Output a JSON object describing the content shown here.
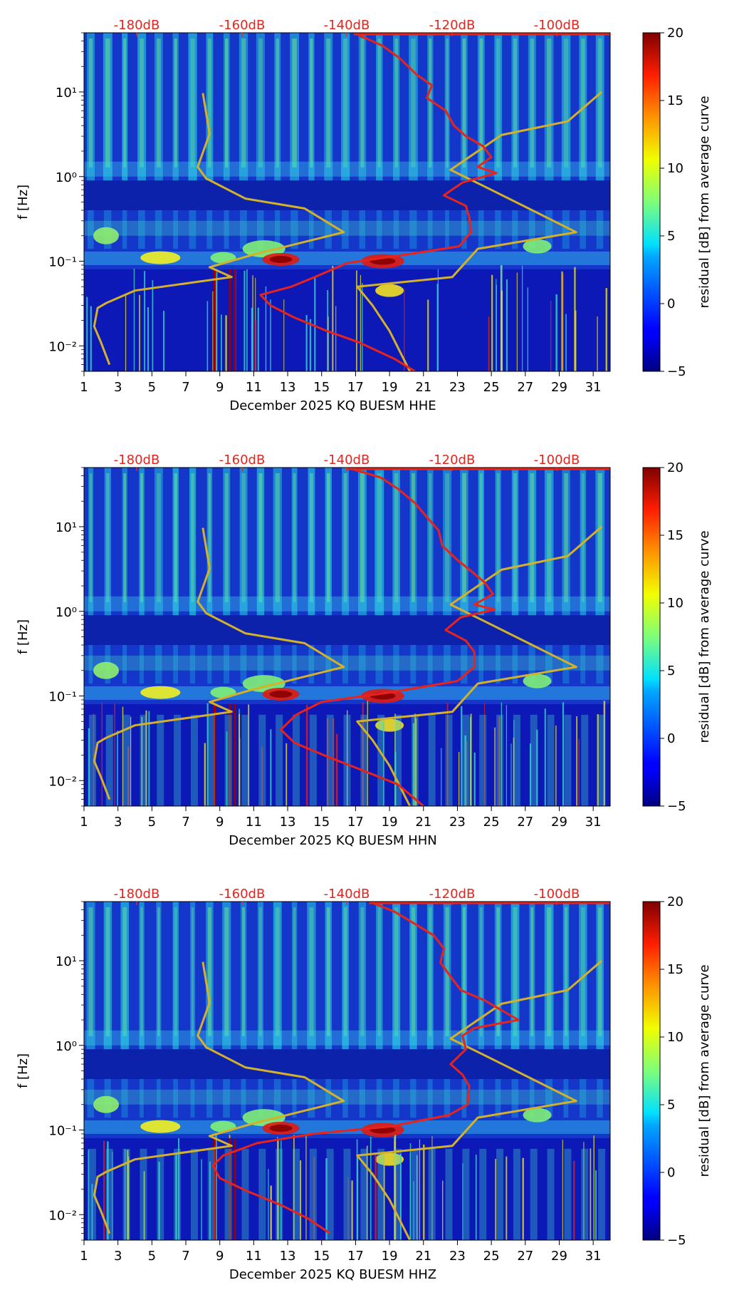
{
  "chart_data": [
    {
      "type": "heatmap",
      "xlabel": "December 2025 KQ BUESM  HHE",
      "ylabel": "f [Hz]",
      "x_ticks": [
        "1",
        "3",
        "5",
        "7",
        "9",
        "11",
        "13",
        "15",
        "17",
        "19",
        "21",
        "23",
        "25",
        "27",
        "29",
        "31"
      ],
      "y_ticks": [
        "10⁻²",
        "10⁻¹",
        "10⁰",
        "10¹"
      ],
      "ylim": [
        0.005,
        50
      ],
      "y_scale": "log",
      "xlim": [
        1,
        32
      ],
      "top_axis_ticks": [
        "-180dB",
        "-160dB",
        "-140dB",
        "-120dB",
        "-100dB"
      ],
      "colorbar": {
        "label": "residual [dB] from average curve",
        "ticks": [
          "−5",
          "0",
          "5",
          "10",
          "15",
          "20"
        ],
        "range": [
          -5,
          20
        ],
        "colormap": "jet"
      },
      "series": [
        {
          "color": "#d4b12a",
          "points": [
            [
              8.0,
              9.7
            ],
            [
              8.4,
              3.2
            ],
            [
              7.7,
              1.3
            ],
            [
              8.2,
              0.95
            ],
            [
              10.5,
              0.55
            ],
            [
              14.0,
              0.42
            ],
            [
              16.3,
              0.22
            ],
            [
              11.0,
              0.12
            ],
            [
              8.4,
              0.085
            ],
            [
              9.7,
              0.065
            ],
            [
              4.0,
              0.045
            ],
            [
              2.3,
              0.032
            ],
            [
              1.8,
              0.028
            ],
            [
              1.6,
              0.017
            ],
            [
              2.0,
              0.011
            ],
            [
              2.5,
              0.006
            ]
          ]
        },
        {
          "color": "#d4b12a",
          "points": [
            [
              31.5,
              10.0
            ],
            [
              29.5,
              4.5
            ],
            [
              25.6,
              3.1
            ],
            [
              22.6,
              1.2
            ],
            [
              24.4,
              0.8
            ],
            [
              30.0,
              0.22
            ],
            [
              24.2,
              0.14
            ],
            [
              22.7,
              0.065
            ],
            [
              17.1,
              0.05
            ],
            [
              18.0,
              0.03
            ],
            [
              19.0,
              0.015
            ],
            [
              20.2,
              0.005
            ]
          ]
        },
        {
          "color": "#e8231c",
          "points": [
            [
              16.9,
              50
            ],
            [
              18.6,
              35
            ],
            [
              19.6,
              25
            ],
            [
              20.6,
              16
            ],
            [
              21.5,
              12
            ],
            [
              21.2,
              8.5
            ],
            [
              22.3,
              6
            ],
            [
              22.8,
              4
            ],
            [
              23.5,
              3
            ],
            [
              24.5,
              2.3
            ],
            [
              25.0,
              1.7
            ],
            [
              24.2,
              1.3
            ],
            [
              25.3,
              1.1
            ],
            [
              23.3,
              0.85
            ],
            [
              22.2,
              0.6
            ],
            [
              23.5,
              0.45
            ],
            [
              23.7,
              0.33
            ],
            [
              23.8,
              0.22
            ],
            [
              23.1,
              0.15
            ],
            [
              20.0,
              0.12
            ],
            [
              16.5,
              0.095
            ],
            [
              14.6,
              0.065
            ],
            [
              13.2,
              0.05
            ],
            [
              11.4,
              0.04
            ],
            [
              12.0,
              0.03
            ],
            [
              13.3,
              0.022
            ],
            [
              15.3,
              0.015
            ],
            [
              17.2,
              0.011
            ],
            [
              19.3,
              0.007
            ],
            [
              20.5,
              0.005
            ]
          ]
        }
      ]
    },
    {
      "type": "heatmap",
      "xlabel": "December 2025 KQ BUESM  HHN",
      "ylabel": "f [Hz]",
      "x_ticks": [
        "1",
        "3",
        "5",
        "7",
        "9",
        "11",
        "13",
        "15",
        "17",
        "19",
        "21",
        "23",
        "25",
        "27",
        "29",
        "31"
      ],
      "y_ticks": [
        "10⁻²",
        "10⁻¹",
        "10⁰",
        "10¹"
      ],
      "ylim": [
        0.005,
        50
      ],
      "y_scale": "log",
      "xlim": [
        1,
        32
      ],
      "top_axis_ticks": [
        "-180dB",
        "-160dB",
        "-140dB",
        "-120dB",
        "-100dB"
      ],
      "colorbar": {
        "label": "residual [dB] from average curve",
        "ticks": [
          "−5",
          "0",
          "5",
          "10",
          "15",
          "20"
        ],
        "range": [
          -5,
          20
        ],
        "colormap": "jet"
      },
      "series": [
        {
          "color": "#d4b12a",
          "points": [
            [
              8.0,
              9.7
            ],
            [
              8.4,
              3.2
            ],
            [
              7.7,
              1.3
            ],
            [
              8.2,
              0.95
            ],
            [
              10.5,
              0.55
            ],
            [
              14.0,
              0.42
            ],
            [
              16.3,
              0.22
            ],
            [
              11.0,
              0.12
            ],
            [
              8.4,
              0.085
            ],
            [
              9.7,
              0.065
            ],
            [
              4.0,
              0.045
            ],
            [
              2.3,
              0.032
            ],
            [
              1.8,
              0.028
            ],
            [
              1.6,
              0.017
            ],
            [
              2.0,
              0.011
            ],
            [
              2.5,
              0.006
            ]
          ]
        },
        {
          "color": "#d4b12a",
          "points": [
            [
              31.5,
              10.0
            ],
            [
              29.5,
              4.5
            ],
            [
              25.6,
              3.1
            ],
            [
              22.6,
              1.2
            ],
            [
              24.4,
              0.8
            ],
            [
              30.0,
              0.22
            ],
            [
              24.2,
              0.14
            ],
            [
              22.7,
              0.065
            ],
            [
              17.1,
              0.05
            ],
            [
              18.0,
              0.03
            ],
            [
              19.0,
              0.015
            ],
            [
              20.2,
              0.005
            ]
          ]
        },
        {
          "color": "#e8231c",
          "points": [
            [
              16.5,
              50
            ],
            [
              18.5,
              38
            ],
            [
              19.5,
              28
            ],
            [
              20.5,
              19
            ],
            [
              21.2,
              13
            ],
            [
              21.9,
              9
            ],
            [
              22.1,
              6
            ],
            [
              22.9,
              4.2
            ],
            [
              23.8,
              3
            ],
            [
              24.6,
              2.2
            ],
            [
              25.1,
              1.6
            ],
            [
              24.0,
              1.2
            ],
            [
              25.2,
              1.05
            ],
            [
              23.2,
              0.85
            ],
            [
              22.3,
              0.6
            ],
            [
              23.5,
              0.45
            ],
            [
              24.0,
              0.33
            ],
            [
              24.0,
              0.22
            ],
            [
              23.0,
              0.15
            ],
            [
              19.0,
              0.11
            ],
            [
              15.0,
              0.085
            ],
            [
              13.5,
              0.06
            ],
            [
              12.6,
              0.04
            ],
            [
              13.4,
              0.028
            ],
            [
              15.4,
              0.019
            ],
            [
              17.5,
              0.013
            ],
            [
              19.5,
              0.009
            ],
            [
              21.0,
              0.005
            ]
          ]
        }
      ]
    },
    {
      "type": "heatmap",
      "xlabel": "December 2025 KQ BUESM  HHZ",
      "ylabel": "f [Hz]",
      "x_ticks": [
        "1",
        "3",
        "5",
        "7",
        "9",
        "11",
        "13",
        "15",
        "17",
        "19",
        "21",
        "23",
        "25",
        "27",
        "29",
        "31"
      ],
      "y_ticks": [
        "10⁻²",
        "10⁻¹",
        "10⁰",
        "10¹"
      ],
      "ylim": [
        0.005,
        50
      ],
      "y_scale": "log",
      "xlim": [
        1,
        32
      ],
      "top_axis_ticks": [
        "-180dB",
        "-160dB",
        "-140dB",
        "-120dB",
        "-100dB"
      ],
      "colorbar": {
        "label": "residual [dB] from average curve",
        "ticks": [
          "−5",
          "0",
          "5",
          "10",
          "15",
          "20"
        ],
        "range": [
          -5,
          20
        ],
        "colormap": "jet"
      },
      "series": [
        {
          "color": "#d4b12a",
          "points": [
            [
              8.0,
              9.7
            ],
            [
              8.4,
              3.2
            ],
            [
              7.7,
              1.3
            ],
            [
              8.2,
              0.95
            ],
            [
              10.5,
              0.55
            ],
            [
              14.0,
              0.42
            ],
            [
              16.3,
              0.22
            ],
            [
              11.0,
              0.12
            ],
            [
              8.4,
              0.085
            ],
            [
              9.7,
              0.065
            ],
            [
              4.0,
              0.045
            ],
            [
              2.3,
              0.032
            ],
            [
              1.8,
              0.028
            ],
            [
              1.6,
              0.017
            ],
            [
              2.0,
              0.011
            ],
            [
              2.5,
              0.006
            ]
          ]
        },
        {
          "color": "#d4b12a",
          "points": [
            [
              31.5,
              10.0
            ],
            [
              29.5,
              4.5
            ],
            [
              25.6,
              3.1
            ],
            [
              22.6,
              1.2
            ],
            [
              24.4,
              0.8
            ],
            [
              30.0,
              0.22
            ],
            [
              24.2,
              0.14
            ],
            [
              22.7,
              0.065
            ],
            [
              17.1,
              0.05
            ],
            [
              18.0,
              0.03
            ],
            [
              19.0,
              0.015
            ],
            [
              20.2,
              0.005
            ]
          ]
        },
        {
          "color": "#e8231c",
          "points": [
            [
              17.8,
              50
            ],
            [
              19.3,
              38
            ],
            [
              20.4,
              28
            ],
            [
              21.6,
              20
            ],
            [
              22.2,
              14
            ],
            [
              22.0,
              9.5
            ],
            [
              22.6,
              6.5
            ],
            [
              23.2,
              4.5
            ],
            [
              24.6,
              3.4
            ],
            [
              25.6,
              2.6
            ],
            [
              26.6,
              2.0
            ],
            [
              24.0,
              1.6
            ],
            [
              23.3,
              1.3
            ],
            [
              23.5,
              0.9
            ],
            [
              22.6,
              0.6
            ],
            [
              23.3,
              0.45
            ],
            [
              23.7,
              0.33
            ],
            [
              23.6,
              0.2
            ],
            [
              22.5,
              0.15
            ],
            [
              19.0,
              0.11
            ],
            [
              14.5,
              0.09
            ],
            [
              11.2,
              0.07
            ],
            [
              9.2,
              0.05
            ],
            [
              8.6,
              0.038
            ],
            [
              9.0,
              0.027
            ],
            [
              10.6,
              0.019
            ],
            [
              12.6,
              0.013
            ],
            [
              14.2,
              0.009
            ],
            [
              15.5,
              0.006
            ]
          ]
        }
      ]
    }
  ]
}
